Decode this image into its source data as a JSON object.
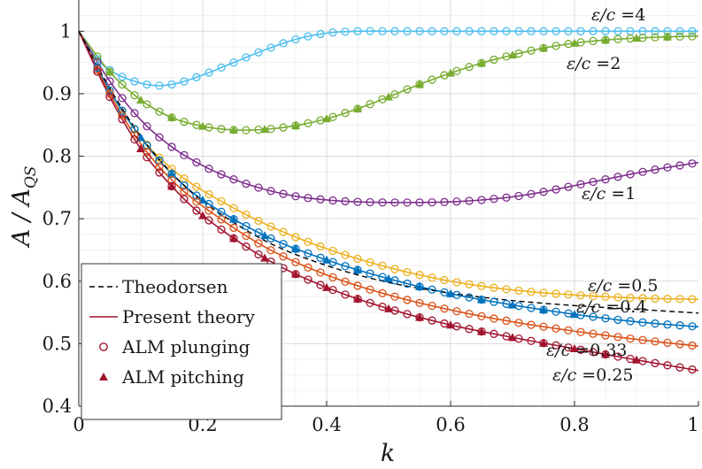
{
  "chart_data": {
    "type": "line",
    "title": "",
    "xlabel": "k",
    "ylabel": "A / A_QS",
    "ylabel_parts": {
      "main": "A / A",
      "sub": "QS"
    },
    "xlim": [
      0,
      1
    ],
    "ylim": [
      0.4,
      1.05
    ],
    "xticks": [
      0,
      0.2,
      0.4,
      0.6,
      0.8,
      1
    ],
    "xtick_labels": [
      "0",
      "0.2",
      "0.4",
      "0.6",
      "0.8",
      "1"
    ],
    "yticks": [
      0.4,
      0.5,
      0.6,
      0.7,
      0.8,
      0.9,
      1
    ],
    "ytick_labels": [
      "0.4",
      "0.5",
      "0.6",
      "0.7",
      "0.8",
      "0.9",
      "1"
    ],
    "grid": true,
    "legend_position": "bottom-left",
    "legend": [
      {
        "label": "Theodorsen",
        "style": "dashed-line"
      },
      {
        "label": "Present theory",
        "style": "solid-line"
      },
      {
        "label": "ALM plunging",
        "style": "open-circle"
      },
      {
        "label": "ALM pitching",
        "style": "filled-triangle"
      }
    ],
    "theodorsen": {
      "name": "Theodorsen",
      "color": "#000000",
      "x": [
        0,
        0.05,
        0.1,
        0.15,
        0.2,
        0.3,
        0.4,
        0.5,
        0.6,
        0.7,
        0.8,
        0.9,
        1.0
      ],
      "values": [
        1.0,
        0.909,
        0.832,
        0.773,
        0.728,
        0.665,
        0.625,
        0.598,
        0.581,
        0.569,
        0.561,
        0.555,
        0.549
      ]
    },
    "series": [
      {
        "name": "ε/c =4",
        "label": "ε/c =4",
        "color": "#4dbeee",
        "x": [
          0,
          0.03,
          0.06,
          0.1,
          0.13,
          0.16,
          0.2,
          0.25,
          0.3,
          0.35,
          0.4,
          0.45,
          0.5,
          0.6,
          0.7,
          0.8,
          0.9,
          1.0
        ],
        "values": [
          1.0,
          0.955,
          0.932,
          0.917,
          0.913,
          0.917,
          0.93,
          0.95,
          0.97,
          0.987,
          0.997,
          1.0,
          1.0,
          1.0,
          1.0,
          1.0,
          1.0,
          1.0
        ],
        "plunging_x": [
          0.03,
          0.05,
          0.07,
          0.09,
          0.11,
          0.13,
          0.15,
          0.17,
          0.19,
          0.21,
          0.23,
          0.25,
          0.27,
          0.29,
          0.31,
          0.33,
          0.35,
          0.37,
          0.39,
          0.41,
          0.43,
          0.45,
          0.47,
          0.49,
          0.51,
          0.53,
          0.55,
          0.57,
          0.59,
          0.61,
          0.63,
          0.65,
          0.67,
          0.69,
          0.71,
          0.73,
          0.75,
          0.77,
          0.79,
          0.81,
          0.83,
          0.85,
          0.87,
          0.89,
          0.91,
          0.93,
          0.95,
          0.97,
          0.99
        ],
        "pitching_x": []
      },
      {
        "name": "ε/c =2",
        "label": "ε/c =2",
        "color": "#77ac30",
        "x": [
          0,
          0.05,
          0.1,
          0.15,
          0.2,
          0.25,
          0.3,
          0.35,
          0.4,
          0.45,
          0.5,
          0.55,
          0.6,
          0.65,
          0.7,
          0.75,
          0.8,
          0.85,
          0.9,
          0.95,
          1.0
        ],
        "values": [
          1.0,
          0.935,
          0.89,
          0.862,
          0.848,
          0.842,
          0.843,
          0.849,
          0.86,
          0.876,
          0.895,
          0.915,
          0.933,
          0.949,
          0.962,
          0.973,
          0.981,
          0.986,
          0.989,
          0.991,
          0.992
        ],
        "plunging_x": [
          0.03,
          0.05,
          0.07,
          0.09,
          0.11,
          0.13,
          0.15,
          0.17,
          0.19,
          0.21,
          0.23,
          0.25,
          0.27,
          0.29,
          0.31,
          0.33,
          0.35,
          0.37,
          0.39,
          0.41,
          0.43,
          0.45,
          0.47,
          0.49,
          0.51,
          0.53,
          0.55,
          0.57,
          0.59,
          0.61,
          0.63,
          0.65,
          0.67,
          0.69,
          0.71,
          0.73,
          0.75,
          0.77,
          0.79,
          0.81,
          0.83,
          0.85,
          0.87,
          0.89,
          0.91,
          0.93,
          0.95,
          0.97,
          0.99
        ],
        "pitching_x": [
          0.05,
          0.1,
          0.15,
          0.2,
          0.25,
          0.3,
          0.35,
          0.4,
          0.45,
          0.5,
          0.55,
          0.6,
          0.65,
          0.7,
          0.75,
          0.8,
          0.85,
          0.9,
          0.95
        ]
      },
      {
        "name": "ε/c =1",
        "label": "ε/c =1",
        "color": "#7e2f8e",
        "x": [
          0,
          0.05,
          0.1,
          0.15,
          0.2,
          0.25,
          0.3,
          0.35,
          0.4,
          0.45,
          0.5,
          0.55,
          0.6,
          0.65,
          0.7,
          0.75,
          0.8,
          0.85,
          0.9,
          0.95,
          1.0
        ],
        "values": [
          1.0,
          0.92,
          0.858,
          0.815,
          0.785,
          0.763,
          0.747,
          0.736,
          0.73,
          0.727,
          0.726,
          0.726,
          0.727,
          0.73,
          0.735,
          0.743,
          0.753,
          0.763,
          0.773,
          0.782,
          0.79
        ],
        "plunging_x": [
          0.03,
          0.05,
          0.07,
          0.09,
          0.11,
          0.13,
          0.15,
          0.17,
          0.19,
          0.21,
          0.23,
          0.25,
          0.27,
          0.29,
          0.31,
          0.33,
          0.35,
          0.37,
          0.39,
          0.41,
          0.43,
          0.45,
          0.47,
          0.49,
          0.51,
          0.53,
          0.55,
          0.57,
          0.59,
          0.61,
          0.63,
          0.65,
          0.67,
          0.69,
          0.71,
          0.73,
          0.75,
          0.77,
          0.79,
          0.81,
          0.83,
          0.85,
          0.87,
          0.89,
          0.91,
          0.93,
          0.95,
          0.97,
          0.99
        ],
        "pitching_x": []
      },
      {
        "name": "ε/c =0.5",
        "label": "ε/c =0.5",
        "color": "#edb120",
        "x": [
          0,
          0.05,
          0.1,
          0.15,
          0.2,
          0.3,
          0.4,
          0.5,
          0.6,
          0.7,
          0.8,
          0.9,
          1.0
        ],
        "values": [
          1.0,
          0.905,
          0.83,
          0.78,
          0.745,
          0.692,
          0.652,
          0.622,
          0.6,
          0.586,
          0.578,
          0.573,
          0.571
        ],
        "plunging_x": [
          0.03,
          0.05,
          0.07,
          0.09,
          0.11,
          0.13,
          0.15,
          0.17,
          0.19,
          0.21,
          0.23,
          0.25,
          0.27,
          0.29,
          0.31,
          0.33,
          0.35,
          0.37,
          0.39,
          0.41,
          0.43,
          0.45,
          0.47,
          0.49,
          0.51,
          0.53,
          0.55,
          0.57,
          0.59,
          0.61,
          0.63,
          0.65,
          0.67,
          0.69,
          0.71,
          0.73,
          0.75,
          0.77,
          0.79,
          0.81,
          0.83,
          0.85,
          0.87,
          0.89,
          0.91,
          0.93,
          0.95,
          0.97,
          0.99
        ],
        "pitching_x": []
      },
      {
        "name": "ε/c =0.4",
        "label": "ε/c =0.4",
        "color": "#0072bd",
        "x": [
          0,
          0.05,
          0.1,
          0.15,
          0.2,
          0.3,
          0.4,
          0.5,
          0.6,
          0.7,
          0.8,
          0.9,
          1.0
        ],
        "values": [
          1.0,
          0.905,
          0.83,
          0.772,
          0.73,
          0.673,
          0.634,
          0.604,
          0.58,
          0.562,
          0.547,
          0.535,
          0.527
        ],
        "plunging_x": [
          0.03,
          0.05,
          0.07,
          0.09,
          0.11,
          0.13,
          0.15,
          0.17,
          0.19,
          0.21,
          0.23,
          0.25,
          0.27,
          0.29,
          0.31,
          0.33,
          0.35,
          0.37,
          0.39,
          0.41,
          0.43,
          0.45,
          0.47,
          0.49,
          0.51,
          0.53,
          0.55,
          0.57,
          0.59,
          0.61,
          0.63,
          0.65,
          0.67,
          0.69,
          0.71,
          0.73,
          0.75,
          0.77,
          0.79,
          0.81,
          0.83,
          0.85,
          0.87,
          0.89,
          0.91,
          0.93,
          0.95,
          0.97,
          0.99
        ],
        "pitching_x": [
          0.1,
          0.15,
          0.2,
          0.25,
          0.3,
          0.35,
          0.4,
          0.45,
          0.5,
          0.55,
          0.6,
          0.65,
          0.7,
          0.75,
          0.8
        ]
      },
      {
        "name": "ε/c =0.33",
        "label": "ε/c =0.33",
        "color": "#d95319",
        "x": [
          0,
          0.05,
          0.1,
          0.15,
          0.2,
          0.3,
          0.4,
          0.5,
          0.6,
          0.7,
          0.8,
          0.9,
          1.0
        ],
        "values": [
          1.0,
          0.9,
          0.82,
          0.762,
          0.72,
          0.655,
          0.61,
          0.578,
          0.554,
          0.535,
          0.52,
          0.507,
          0.496
        ],
        "plunging_x": [
          0.03,
          0.05,
          0.07,
          0.09,
          0.11,
          0.13,
          0.15,
          0.17,
          0.19,
          0.21,
          0.23,
          0.25,
          0.27,
          0.29,
          0.31,
          0.33,
          0.35,
          0.37,
          0.39,
          0.41,
          0.43,
          0.45,
          0.47,
          0.49,
          0.51,
          0.53,
          0.55,
          0.57,
          0.59,
          0.61,
          0.63,
          0.65,
          0.67,
          0.69,
          0.71,
          0.73,
          0.75,
          0.77,
          0.79,
          0.81,
          0.83,
          0.85,
          0.87,
          0.89,
          0.91,
          0.93,
          0.95,
          0.97,
          0.99
        ],
        "pitching_x": []
      },
      {
        "name": "ε/c =0.25",
        "label": "ε/c =0.25",
        "color": "#a2142f",
        "x": [
          0,
          0.05,
          0.1,
          0.15,
          0.2,
          0.3,
          0.4,
          0.5,
          0.6,
          0.7,
          0.8,
          0.9,
          1.0
        ],
        "values": [
          1.0,
          0.895,
          0.812,
          0.752,
          0.705,
          0.637,
          0.59,
          0.556,
          0.53,
          0.51,
          0.492,
          0.474,
          0.457
        ],
        "plunging_x": [
          0.03,
          0.05,
          0.07,
          0.09,
          0.11,
          0.13,
          0.15,
          0.17,
          0.19,
          0.21,
          0.23,
          0.25,
          0.27,
          0.29,
          0.31,
          0.33,
          0.35,
          0.37,
          0.39,
          0.41,
          0.43,
          0.45,
          0.47,
          0.49,
          0.51,
          0.53,
          0.55,
          0.57,
          0.59,
          0.61,
          0.63,
          0.65,
          0.67,
          0.69,
          0.71,
          0.73,
          0.75,
          0.77,
          0.79,
          0.81,
          0.83,
          0.85,
          0.87,
          0.89,
          0.91,
          0.93,
          0.95,
          0.97,
          0.99
        ],
        "pitching_x": [
          0.1,
          0.15,
          0.2,
          0.25,
          0.3,
          0.35,
          0.4,
          0.45,
          0.5,
          0.55,
          0.6,
          0.65,
          0.7,
          0.75,
          0.8,
          0.85,
          0.9
        ]
      }
    ]
  }
}
